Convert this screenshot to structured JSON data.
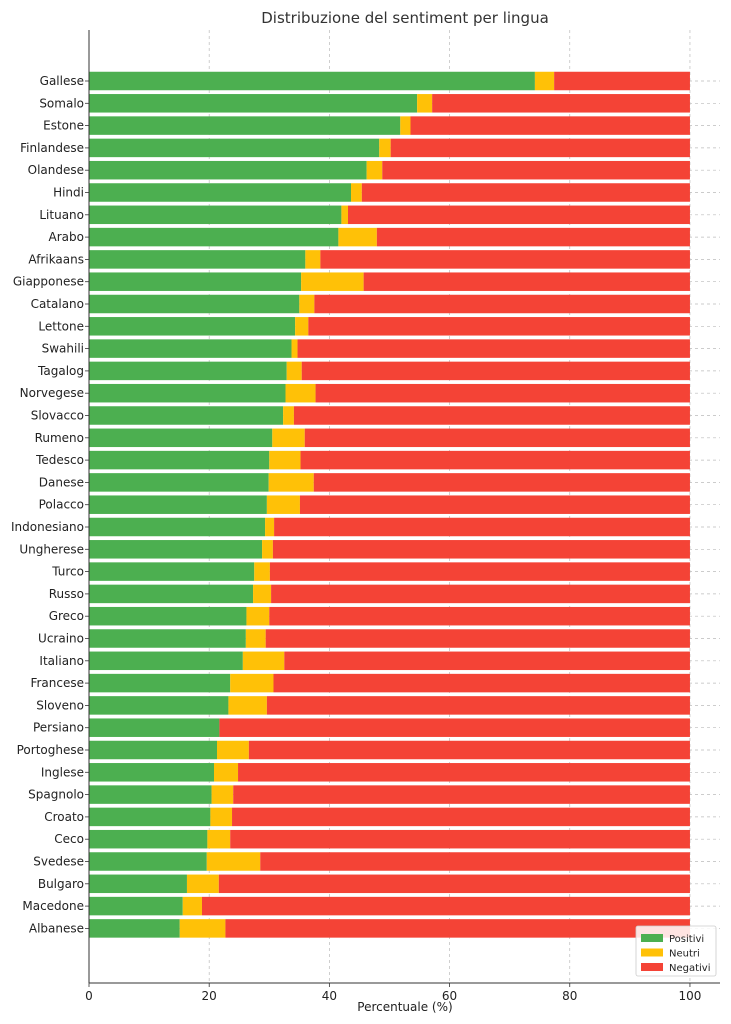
{
  "chart_data": {
    "type": "bar",
    "orientation": "horizontal",
    "stacked": true,
    "title": "Distribuzione del sentiment per lingua",
    "xlabel": "Percentuale (%)",
    "ylabel": "",
    "xlim": [
      0,
      105
    ],
    "xticks": [
      0,
      20,
      40,
      60,
      80,
      100
    ],
    "grid": true,
    "legend_position": "bottom-right",
    "categories": [
      "Gallese",
      "Somalo",
      "Estone",
      "Finlandese",
      "Olandese",
      "Hindi",
      "Lituano",
      "Arabo",
      "Afrikaans",
      "Giapponese",
      "Catalano",
      "Lettone",
      "Swahili",
      "Tagalog",
      "Norvegese",
      "Slovacco",
      "Rumeno",
      "Tedesco",
      "Danese",
      "Polacco",
      "Indonesiano",
      "Ungherese",
      "Turco",
      "Russo",
      "Greco",
      "Ucraino",
      "Italiano",
      "Francese",
      "Sloveno",
      "Persiano",
      "Portoghese",
      "Inglese",
      "Spagnolo",
      "Croato",
      "Ceco",
      "Svedese",
      "Bulgaro",
      "Macedone",
      "Albanese"
    ],
    "series": [
      {
        "name": "Positivi",
        "color": "#4caf50",
        "values": [
          74.2,
          54.6,
          51.8,
          48.3,
          46.2,
          43.6,
          42.0,
          41.5,
          36.0,
          35.3,
          35.0,
          34.3,
          33.7,
          32.9,
          32.7,
          32.3,
          30.5,
          30.0,
          29.9,
          29.6,
          29.3,
          28.8,
          27.5,
          27.3,
          26.2,
          26.1,
          25.6,
          23.5,
          23.2,
          21.7,
          21.3,
          20.8,
          20.4,
          20.2,
          19.7,
          19.6,
          16.3,
          15.6,
          15.1
        ]
      },
      {
        "name": "Neutri",
        "color": "#ffc107",
        "values": [
          3.2,
          2.5,
          1.7,
          1.9,
          2.6,
          1.8,
          1.1,
          6.4,
          2.5,
          10.4,
          2.5,
          2.2,
          1.0,
          2.5,
          5.0,
          1.8,
          5.4,
          5.2,
          7.5,
          5.5,
          1.5,
          1.8,
          2.6,
          3.0,
          3.8,
          3.3,
          6.9,
          7.2,
          6.4,
          0.0,
          5.3,
          4.0,
          3.6,
          3.6,
          3.8,
          8.9,
          5.3,
          3.2,
          7.6
        ]
      },
      {
        "name": "Negativi",
        "color": "#f44336",
        "values": [
          22.6,
          42.9,
          46.5,
          49.8,
          51.2,
          54.6,
          56.9,
          52.1,
          61.5,
          54.3,
          62.5,
          63.5,
          65.3,
          64.6,
          62.3,
          65.9,
          64.1,
          64.8,
          62.6,
          64.9,
          69.2,
          69.4,
          69.9,
          69.7,
          70.0,
          70.6,
          67.5,
          69.3,
          70.4,
          78.3,
          73.4,
          75.2,
          76.0,
          76.2,
          76.5,
          71.5,
          78.4,
          81.2,
          77.3
        ]
      }
    ]
  }
}
